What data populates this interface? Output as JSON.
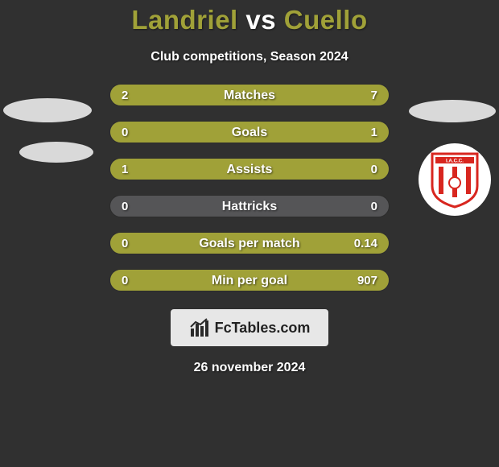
{
  "background_color": "#303030",
  "text_color": "#ffffff",
  "title": {
    "player_a": "Landriel",
    "vs": "vs",
    "player_b": "Cuello",
    "color_a": "#a0a138",
    "color_vs": "#ffffff",
    "color_b": "#a0a138",
    "fontsize": 33
  },
  "subtitle": "Club competitions, Season 2024",
  "subtitle_fontsize": 16,
  "row_track_color": "#555557",
  "row_border_color": "#2c2c2c",
  "bar_color": "#a0a138",
  "stat_rows": [
    {
      "label": "Matches",
      "left_text": "2",
      "right_text": "7",
      "left_pct": 22,
      "right_pct": 78
    },
    {
      "label": "Goals",
      "left_text": "0",
      "right_text": "1",
      "left_pct": 0,
      "right_pct": 100
    },
    {
      "label": "Assists",
      "left_text": "1",
      "right_text": "0",
      "left_pct": 100,
      "right_pct": 0
    },
    {
      "label": "Hattricks",
      "left_text": "0",
      "right_text": "0",
      "left_pct": 0,
      "right_pct": 0
    },
    {
      "label": "Goals per match",
      "left_text": "0",
      "right_text": "0.14",
      "left_pct": 0,
      "right_pct": 100
    },
    {
      "label": "Min per goal",
      "left_text": "0",
      "right_text": "907",
      "left_pct": 0,
      "right_pct": 100
    }
  ],
  "left_ellipses_color": "#d9d9d9",
  "right_ellipse_color": "#d9d9d9",
  "club_badge": {
    "bg": "#ffffff",
    "accent": "#d8261f",
    "label": "I.A.C.C."
  },
  "brand": {
    "box_bg": "#e7e7e7",
    "text": "FcTables.com",
    "icon_color": "#2a2a2a"
  },
  "date_text": "26 november 2024"
}
